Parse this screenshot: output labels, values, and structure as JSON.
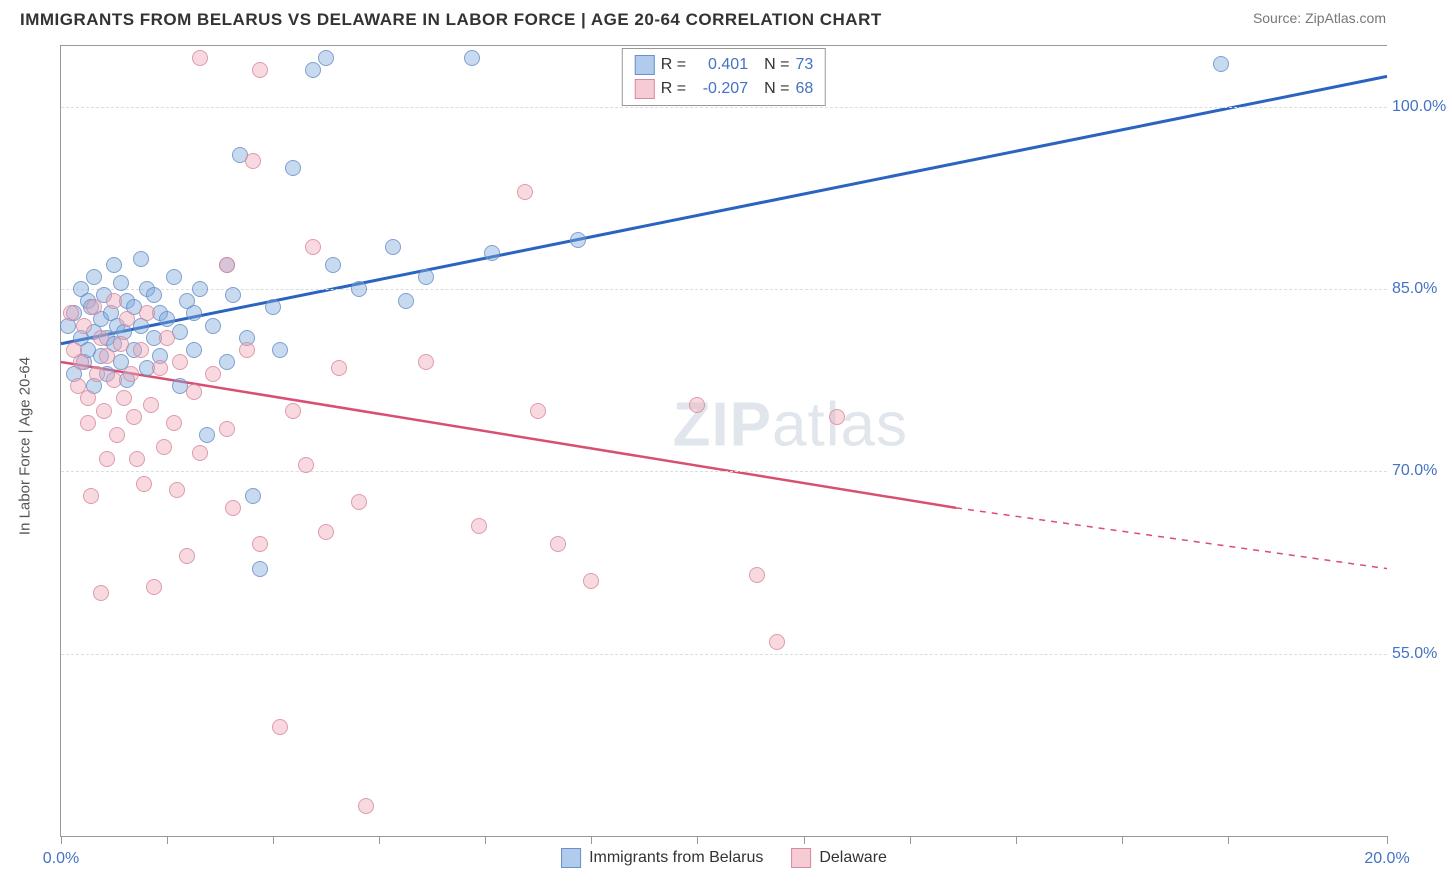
{
  "title": "IMMIGRANTS FROM BELARUS VS DELAWARE IN LABOR FORCE | AGE 20-64 CORRELATION CHART",
  "source": "Source: ZipAtlas.com",
  "ylabel": "In Labor Force | Age 20-64",
  "watermark_bold": "ZIP",
  "watermark_rest": "atlas",
  "chart": {
    "type": "scatter",
    "xlim": [
      0,
      20
    ],
    "ylim": [
      40,
      105
    ],
    "xtick_positions": [
      0,
      1.6,
      3.2,
      4.8,
      6.4,
      8.0,
      9.6,
      11.2,
      12.8,
      14.4,
      16.0,
      17.6,
      20.0
    ],
    "xtick_labels": {
      "0": "0.0%",
      "20": "20.0%"
    },
    "ytick_positions": [
      55,
      70,
      85,
      100
    ],
    "ytick_labels": {
      "55": "55.0%",
      "70": "70.0%",
      "85": "85.0%",
      "100": "100.0%"
    },
    "grid_color": "#dddddd",
    "axis_color": "#999999",
    "background_color": "#ffffff"
  },
  "series": [
    {
      "name": "Immigrants from Belarus",
      "color_fill": "rgba(124,169,222,0.5)",
      "color_stroke": "#6b8fc7",
      "line_color": "#2a63c0",
      "line_width": 3,
      "R": "0.401",
      "N": "73",
      "regression": {
        "x1": 0,
        "y1": 80.5,
        "x2": 20,
        "y2": 102.5
      },
      "points": [
        [
          0.1,
          82
        ],
        [
          0.2,
          83
        ],
        [
          0.2,
          78
        ],
        [
          0.3,
          85
        ],
        [
          0.3,
          81
        ],
        [
          0.35,
          79
        ],
        [
          0.4,
          84
        ],
        [
          0.4,
          80
        ],
        [
          0.45,
          83.5
        ],
        [
          0.5,
          81.5
        ],
        [
          0.5,
          86
        ],
        [
          0.5,
          77
        ],
        [
          0.6,
          82.5
        ],
        [
          0.6,
          79.5
        ],
        [
          0.65,
          84.5
        ],
        [
          0.7,
          81
        ],
        [
          0.7,
          78
        ],
        [
          0.75,
          83
        ],
        [
          0.8,
          87
        ],
        [
          0.8,
          80.5
        ],
        [
          0.85,
          82
        ],
        [
          0.9,
          85.5
        ],
        [
          0.9,
          79
        ],
        [
          0.95,
          81.5
        ],
        [
          1.0,
          84
        ],
        [
          1.0,
          77.5
        ],
        [
          1.1,
          83.5
        ],
        [
          1.1,
          80
        ],
        [
          1.2,
          87.5
        ],
        [
          1.2,
          82
        ],
        [
          1.3,
          85
        ],
        [
          1.3,
          78.5
        ],
        [
          1.4,
          81
        ],
        [
          1.4,
          84.5
        ],
        [
          1.5,
          83
        ],
        [
          1.5,
          79.5
        ],
        [
          1.6,
          82.5
        ],
        [
          1.7,
          86
        ],
        [
          1.8,
          81.5
        ],
        [
          1.8,
          77
        ],
        [
          1.9,
          84
        ],
        [
          2.0,
          83
        ],
        [
          2.0,
          80
        ],
        [
          2.1,
          85
        ],
        [
          2.2,
          73
        ],
        [
          2.3,
          82
        ],
        [
          2.5,
          87
        ],
        [
          2.5,
          79
        ],
        [
          2.6,
          84.5
        ],
        [
          2.7,
          96
        ],
        [
          2.8,
          81
        ],
        [
          2.9,
          68
        ],
        [
          3.0,
          62
        ],
        [
          3.2,
          83.5
        ],
        [
          3.3,
          80
        ],
        [
          3.5,
          95
        ],
        [
          3.8,
          103
        ],
        [
          4.0,
          104
        ],
        [
          4.1,
          87
        ],
        [
          4.5,
          85
        ],
        [
          5.0,
          88.5
        ],
        [
          5.2,
          84
        ],
        [
          5.5,
          86
        ],
        [
          6.2,
          104
        ],
        [
          6.5,
          88
        ],
        [
          7.8,
          89
        ],
        [
          17.5,
          103.5
        ]
      ]
    },
    {
      "name": "Delaware",
      "color_fill": "rgba(240,168,184,0.5)",
      "color_stroke": "#d88a9e",
      "line_color": "#d94f72",
      "line_width": 2.5,
      "R": "-0.207",
      "N": "68",
      "regression": {
        "x1": 0,
        "y1": 79,
        "x2": 13.5,
        "y2": 67
      },
      "regression_dashed": {
        "x1": 13.5,
        "y1": 67,
        "x2": 20,
        "y2": 62
      },
      "points": [
        [
          0.15,
          83
        ],
        [
          0.2,
          80
        ],
        [
          0.25,
          77
        ],
        [
          0.3,
          79
        ],
        [
          0.35,
          82
        ],
        [
          0.4,
          76
        ],
        [
          0.4,
          74
        ],
        [
          0.5,
          83.5
        ],
        [
          0.45,
          68
        ],
        [
          0.55,
          78
        ],
        [
          0.6,
          81
        ],
        [
          0.6,
          60
        ],
        [
          0.65,
          75
        ],
        [
          0.7,
          79.5
        ],
        [
          0.7,
          71
        ],
        [
          0.8,
          84
        ],
        [
          0.8,
          77.5
        ],
        [
          0.85,
          73
        ],
        [
          0.9,
          80.5
        ],
        [
          0.95,
          76
        ],
        [
          1.0,
          82.5
        ],
        [
          1.05,
          78
        ],
        [
          1.1,
          74.5
        ],
        [
          1.15,
          71
        ],
        [
          1.2,
          80
        ],
        [
          1.25,
          69
        ],
        [
          1.3,
          83
        ],
        [
          1.35,
          75.5
        ],
        [
          1.4,
          60.5
        ],
        [
          1.5,
          78.5
        ],
        [
          1.55,
          72
        ],
        [
          1.6,
          81
        ],
        [
          1.7,
          74
        ],
        [
          1.75,
          68.5
        ],
        [
          1.8,
          79
        ],
        [
          1.9,
          63
        ],
        [
          2.0,
          76.5
        ],
        [
          2.1,
          104
        ],
        [
          2.1,
          71.5
        ],
        [
          2.3,
          78
        ],
        [
          2.5,
          87
        ],
        [
          2.5,
          73.5
        ],
        [
          2.6,
          67
        ],
        [
          2.8,
          80
        ],
        [
          2.9,
          95.5
        ],
        [
          3.0,
          64
        ],
        [
          3.0,
          103
        ],
        [
          3.3,
          49
        ],
        [
          3.5,
          75
        ],
        [
          3.7,
          70.5
        ],
        [
          3.8,
          88.5
        ],
        [
          4.0,
          65
        ],
        [
          4.2,
          78.5
        ],
        [
          4.5,
          67.5
        ],
        [
          4.6,
          42.5
        ],
        [
          5.5,
          79
        ],
        [
          6.3,
          65.5
        ],
        [
          7.0,
          93
        ],
        [
          7.2,
          75
        ],
        [
          7.5,
          64
        ],
        [
          8.0,
          61
        ],
        [
          9.6,
          75.5
        ],
        [
          10.5,
          61.5
        ],
        [
          10.8,
          56
        ],
        [
          11.7,
          74.5
        ]
      ]
    }
  ],
  "legend_bottom": [
    {
      "swatch": "blue",
      "label": "Immigrants from Belarus"
    },
    {
      "swatch": "pink",
      "label": "Delaware"
    }
  ]
}
